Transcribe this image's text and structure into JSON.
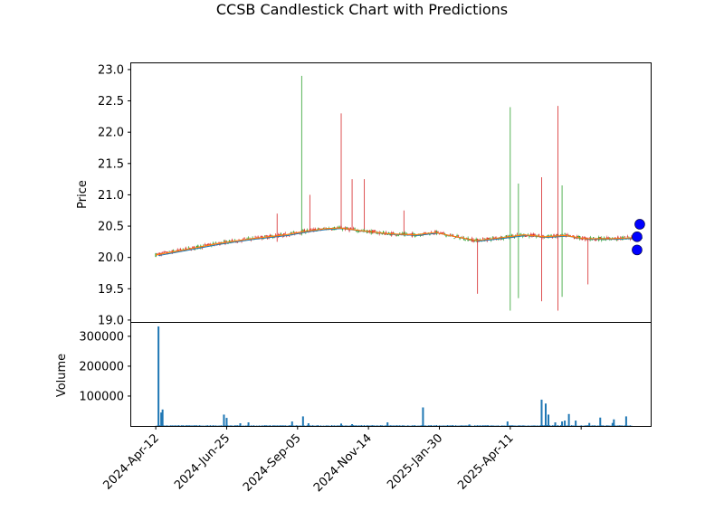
{
  "chart_data": {
    "type": "candlestick",
    "title": "CCSB Candlestick Chart with Predictions",
    "colors": {
      "up": "#2ca02c",
      "down": "#d62728",
      "ma_short": "#ff7f0e",
      "ma_long": "#1f77b4",
      "prediction": "#0000ff",
      "volume": "#1f77b4"
    },
    "price_panel": {
      "ylabel": "Price",
      "ylim": [
        18.97,
        23.1
      ],
      "yticks": [
        "19.0",
        "19.5",
        "20.0",
        "20.5",
        "21.0",
        "21.5",
        "22.0",
        "22.5",
        "23.0"
      ],
      "ma_line": [
        [
          0,
          20.04
        ],
        [
          20,
          20.12
        ],
        [
          45,
          20.22
        ],
        [
          70,
          20.3
        ],
        [
          95,
          20.36
        ],
        [
          110,
          20.42
        ],
        [
          125,
          20.46
        ],
        [
          135,
          20.47
        ],
        [
          150,
          20.43
        ],
        [
          170,
          20.38
        ],
        [
          190,
          20.36
        ],
        [
          205,
          20.4
        ],
        [
          220,
          20.33
        ],
        [
          235,
          20.27
        ],
        [
          255,
          20.32
        ],
        [
          270,
          20.36
        ],
        [
          285,
          20.33
        ],
        [
          300,
          20.35
        ],
        [
          315,
          20.3
        ],
        [
          335,
          20.3
        ],
        [
          355,
          20.32
        ]
      ],
      "spikes": [
        {
          "x": 107,
          "high": 22.9,
          "low": 20.35,
          "dir": "up"
        },
        {
          "x": 113,
          "high": 21.0,
          "low": 20.4,
          "dir": "down"
        },
        {
          "x": 136,
          "high": 22.3,
          "low": 20.45,
          "dir": "down"
        },
        {
          "x": 144,
          "high": 21.25,
          "low": 20.45,
          "dir": "down"
        },
        {
          "x": 153,
          "high": 21.25,
          "low": 20.45,
          "dir": "down"
        },
        {
          "x": 182,
          "high": 20.75,
          "low": 20.35,
          "dir": "down"
        },
        {
          "x": 236,
          "high": 20.3,
          "low": 19.42,
          "dir": "down"
        },
        {
          "x": 260,
          "high": 22.4,
          "low": 19.15,
          "dir": "up"
        },
        {
          "x": 266,
          "high": 21.18,
          "low": 19.35,
          "dir": "up"
        },
        {
          "x": 283,
          "high": 21.28,
          "low": 19.3,
          "dir": "down"
        },
        {
          "x": 295,
          "high": 22.42,
          "low": 19.15,
          "dir": "down"
        },
        {
          "x": 298,
          "high": 21.15,
          "low": 19.37,
          "dir": "up"
        },
        {
          "x": 317,
          "high": 20.3,
          "low": 19.57,
          "dir": "down"
        },
        {
          "x": 89,
          "high": 20.7,
          "low": 20.25,
          "dir": "down"
        }
      ],
      "predictions": [
        {
          "x": 355,
          "y": 20.53
        },
        {
          "x": 353,
          "y": 20.33
        },
        {
          "x": 353,
          "y": 20.12
        }
      ]
    },
    "volume_panel": {
      "ylabel": "Volume",
      "ylim": [
        0,
        345000
      ],
      "yticks": [
        "100000",
        "200000",
        "300000"
      ],
      "bars": [
        {
          "x": 2,
          "v": 333000
        },
        {
          "x": 4,
          "v": 45000
        },
        {
          "x": 5,
          "v": 55000
        },
        {
          "x": 50,
          "v": 38000
        },
        {
          "x": 52,
          "v": 27000
        },
        {
          "x": 62,
          "v": 9000
        },
        {
          "x": 68,
          "v": 12000
        },
        {
          "x": 100,
          "v": 15000
        },
        {
          "x": 108,
          "v": 32000
        },
        {
          "x": 112,
          "v": 9000
        },
        {
          "x": 136,
          "v": 8000
        },
        {
          "x": 144,
          "v": 6000
        },
        {
          "x": 170,
          "v": 12000
        },
        {
          "x": 196,
          "v": 62000
        },
        {
          "x": 230,
          "v": 5000
        },
        {
          "x": 258,
          "v": 15000
        },
        {
          "x": 283,
          "v": 88000
        },
        {
          "x": 286,
          "v": 75000
        },
        {
          "x": 288,
          "v": 38000
        },
        {
          "x": 293,
          "v": 12000
        },
        {
          "x": 298,
          "v": 15000
        },
        {
          "x": 300,
          "v": 18000
        },
        {
          "x": 303,
          "v": 40000
        },
        {
          "x": 308,
          "v": 18000
        },
        {
          "x": 318,
          "v": 10000
        },
        {
          "x": 326,
          "v": 28000
        },
        {
          "x": 335,
          "v": 10000
        },
        {
          "x": 336,
          "v": 22000
        },
        {
          "x": 345,
          "v": 32000
        }
      ]
    },
    "x_axis": {
      "xlim": [
        -18,
        363
      ],
      "ticks": [
        {
          "x": 0,
          "label": "2024-Apr-12"
        },
        {
          "x": 52,
          "label": "2024-Jun-25"
        },
        {
          "x": 104,
          "label": "2024-Sep-05"
        },
        {
          "x": 156,
          "label": "2024-Nov-14"
        },
        {
          "x": 208,
          "label": "2025-Jan-30"
        },
        {
          "x": 260,
          "label": "2025-Apr-11"
        },
        {
          "x": 312,
          "label": ""
        }
      ]
    }
  }
}
